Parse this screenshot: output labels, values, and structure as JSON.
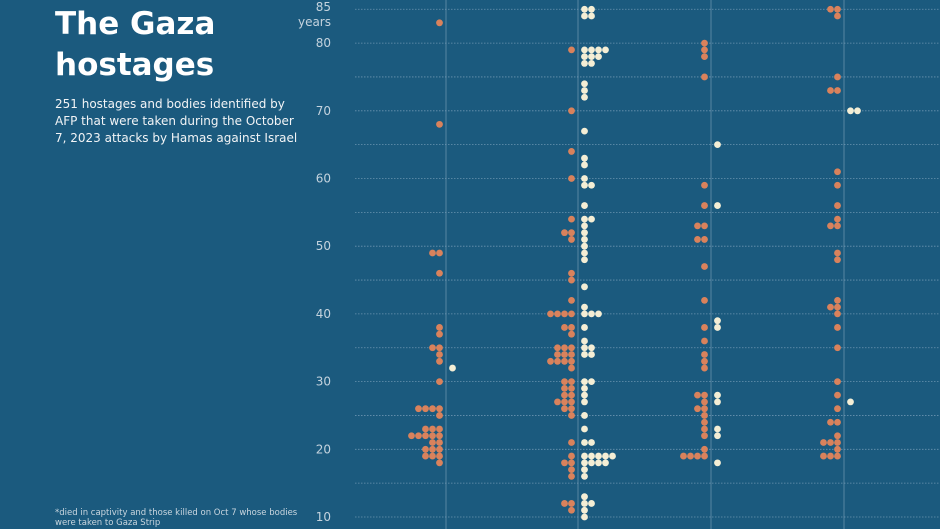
{
  "header": {
    "title": "The Gaza hostages",
    "subtitle": "251 hostages and bodies identified by AFP that were taken during the October 7, 2023 attacks by Hamas against Israel",
    "footnote": "*died in captivity and those killed on Oct 7 whose bodies were taken to Gaza Strip"
  },
  "chart_data": {
    "type": "scatter",
    "ylabel": "years",
    "ylim": [
      10,
      85
    ],
    "y_ticks": [
      "10",
      "20",
      "30",
      "40",
      "50",
      "60",
      "70",
      "80",
      "85"
    ],
    "grid": true,
    "colors": {
      "background": "#1b5a7e",
      "dead": "#d9825c",
      "alive": "#f4eed5",
      "gridline": "#7fa3bd"
    },
    "columns": [
      {
        "dead": [
          [
            83,
            1
          ],
          [
            68,
            1
          ],
          [
            49,
            2
          ],
          [
            46,
            1
          ],
          [
            38,
            1
          ],
          [
            37,
            1
          ],
          [
            35,
            2
          ],
          [
            34,
            1
          ],
          [
            33,
            1
          ],
          [
            30,
            1
          ],
          [
            26,
            4
          ],
          [
            25,
            1
          ],
          [
            23,
            3
          ],
          [
            22,
            5
          ],
          [
            21,
            2
          ],
          [
            20,
            3
          ],
          [
            19,
            3
          ],
          [
            18,
            1
          ]
        ],
        "alive": [
          [
            32,
            1
          ]
        ]
      },
      {
        "dead": [
          [
            79,
            1
          ],
          [
            70,
            1
          ],
          [
            64,
            1
          ],
          [
            60,
            1
          ],
          [
            54,
            1
          ],
          [
            52,
            2
          ],
          [
            51,
            1
          ],
          [
            46,
            1
          ],
          [
            45,
            1
          ],
          [
            42,
            1
          ],
          [
            40,
            4
          ],
          [
            38,
            2
          ],
          [
            37,
            1
          ],
          [
            35,
            3
          ],
          [
            34,
            3
          ],
          [
            33,
            4
          ],
          [
            32,
            1
          ],
          [
            30,
            2
          ],
          [
            29,
            2
          ],
          [
            28,
            2
          ],
          [
            27,
            3
          ],
          [
            26,
            2
          ],
          [
            25,
            1
          ],
          [
            21,
            1
          ],
          [
            19,
            1
          ],
          [
            18,
            2
          ],
          [
            17,
            1
          ],
          [
            16,
            1
          ],
          [
            12,
            2
          ],
          [
            11,
            1
          ]
        ],
        "alive": [
          [
            85,
            2
          ],
          [
            84,
            2
          ],
          [
            79,
            4
          ],
          [
            78,
            3
          ],
          [
            77,
            2
          ],
          [
            74,
            1
          ],
          [
            73,
            1
          ],
          [
            72,
            1
          ],
          [
            67,
            1
          ],
          [
            63,
            1
          ],
          [
            62,
            1
          ],
          [
            60,
            1
          ],
          [
            59,
            2
          ],
          [
            56,
            1
          ],
          [
            54,
            2
          ],
          [
            53,
            1
          ],
          [
            52,
            1
          ],
          [
            51,
            1
          ],
          [
            50,
            1
          ],
          [
            49,
            1
          ],
          [
            48,
            1
          ],
          [
            44,
            1
          ],
          [
            41,
            1
          ],
          [
            40,
            3
          ],
          [
            38,
            1
          ],
          [
            36,
            1
          ],
          [
            35,
            2
          ],
          [
            34,
            2
          ],
          [
            30,
            2
          ],
          [
            29,
            1
          ],
          [
            28,
            1
          ],
          [
            27,
            1
          ],
          [
            25,
            1
          ],
          [
            23,
            1
          ],
          [
            21,
            2
          ],
          [
            19,
            5
          ],
          [
            18,
            4
          ],
          [
            17,
            1
          ],
          [
            16,
            1
          ],
          [
            13,
            1
          ],
          [
            12,
            2
          ],
          [
            11,
            1
          ],
          [
            10,
            1
          ]
        ]
      },
      {
        "dead": [
          [
            80,
            1
          ],
          [
            79,
            1
          ],
          [
            78,
            1
          ],
          [
            75,
            1
          ],
          [
            59,
            1
          ],
          [
            56,
            1
          ],
          [
            53,
            2
          ],
          [
            51,
            2
          ],
          [
            47,
            1
          ],
          [
            42,
            1
          ],
          [
            38,
            1
          ],
          [
            36,
            1
          ],
          [
            34,
            1
          ],
          [
            33,
            1
          ],
          [
            32,
            1
          ],
          [
            28,
            2
          ],
          [
            27,
            1
          ],
          [
            26,
            2
          ],
          [
            25,
            1
          ],
          [
            24,
            1
          ],
          [
            23,
            1
          ],
          [
            22,
            1
          ],
          [
            20,
            1
          ],
          [
            19,
            4
          ]
        ],
        "alive": [
          [
            65,
            1
          ],
          [
            56,
            1
          ],
          [
            39,
            1
          ],
          [
            38,
            1
          ],
          [
            28,
            1
          ],
          [
            27,
            1
          ],
          [
            23,
            1
          ],
          [
            22,
            1
          ],
          [
            18,
            1
          ]
        ]
      },
      {
        "dead": [
          [
            85,
            2
          ],
          [
            84,
            1
          ],
          [
            75,
            1
          ],
          [
            73,
            2
          ],
          [
            61,
            1
          ],
          [
            59,
            1
          ],
          [
            56,
            1
          ],
          [
            54,
            1
          ],
          [
            53,
            2
          ],
          [
            49,
            1
          ],
          [
            48,
            1
          ],
          [
            42,
            1
          ],
          [
            41,
            2
          ],
          [
            40,
            1
          ],
          [
            38,
            1
          ],
          [
            35,
            1
          ],
          [
            30,
            1
          ],
          [
            28,
            1
          ],
          [
            26,
            1
          ],
          [
            24,
            2
          ],
          [
            22,
            1
          ],
          [
            21,
            3
          ],
          [
            20,
            1
          ],
          [
            19,
            3
          ]
        ],
        "alive": [
          [
            70,
            2
          ],
          [
            27,
            1
          ]
        ]
      }
    ]
  }
}
